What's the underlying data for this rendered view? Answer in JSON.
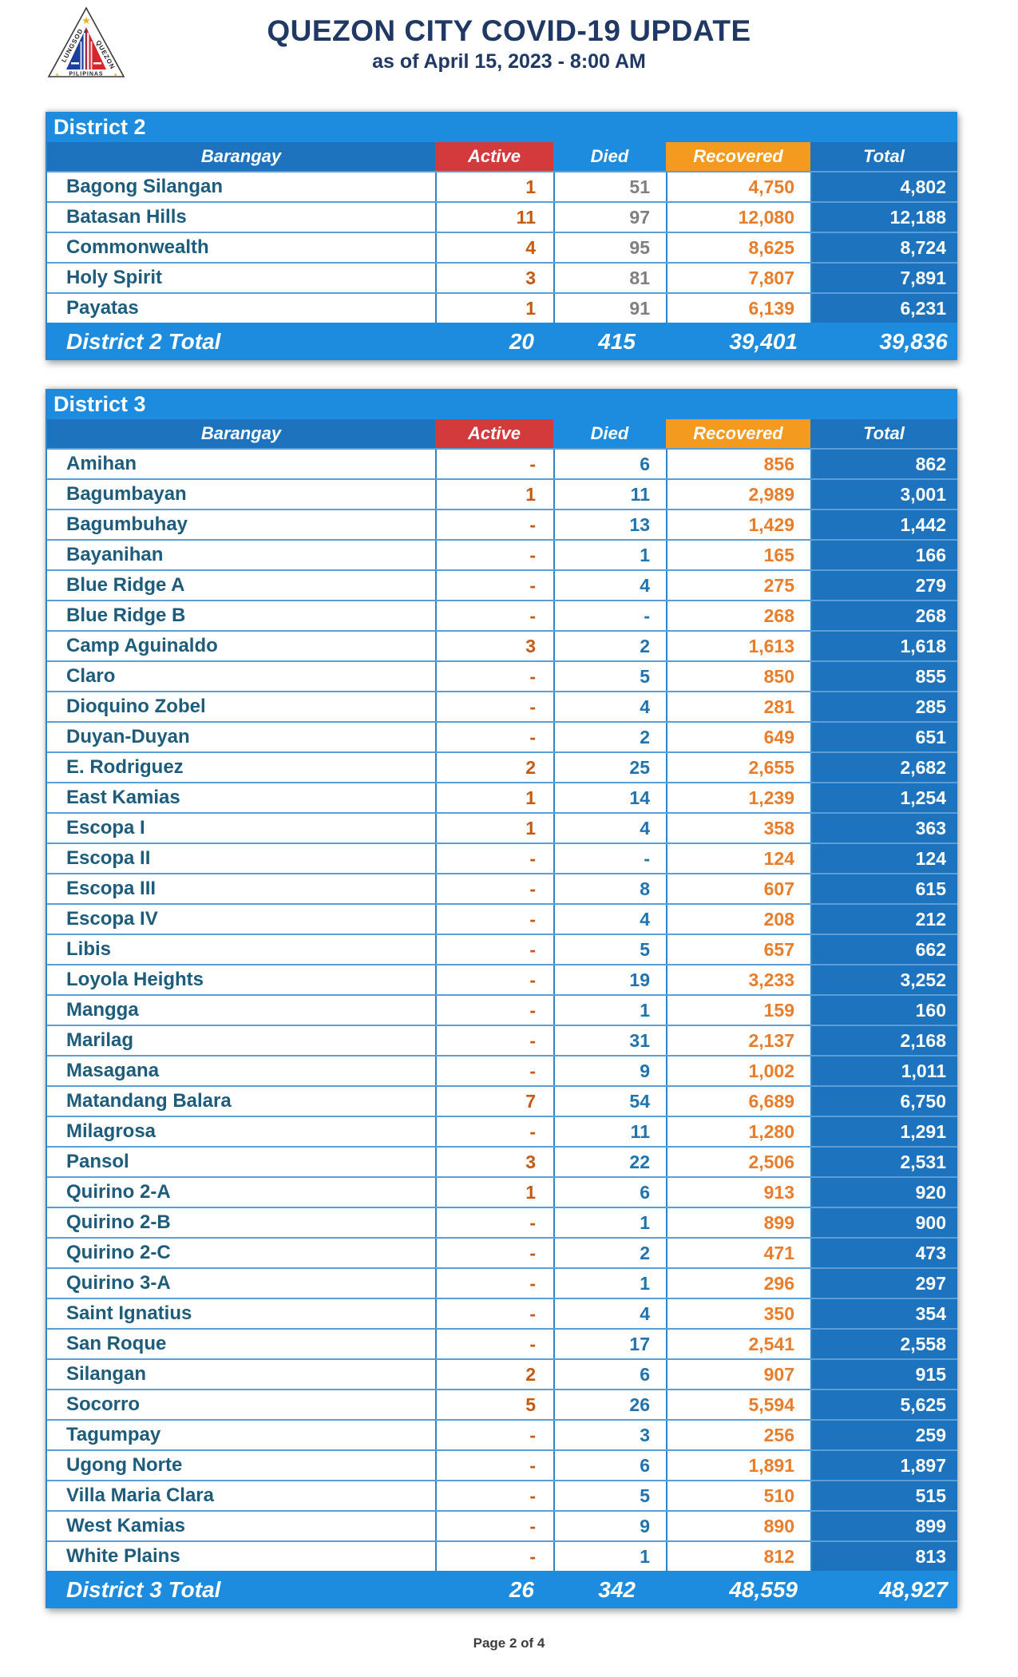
{
  "page": {
    "title": "QUEZON CITY COVID-19 UPDATE",
    "subtitle": "as of April 15, 2023 - 8:00 AM",
    "footer": "Page 2 of 4"
  },
  "logo": {
    "arc_left": "LUNGSOD",
    "arc_right": "QUEZON",
    "bottom": "PILIPINAS"
  },
  "columns": {
    "barangay": "Barangay",
    "active": "Active",
    "died": "Died",
    "recovered": "Recovered",
    "total": "Total"
  },
  "colors": {
    "title_text": "#1F3864",
    "district_band": "#1E8CDE",
    "header_blue": "#1E73BE",
    "active_header_red": "#D23A3C",
    "recovered_header_orange": "#F39A1F",
    "total_column_blue": "#1E73BE",
    "barangay_text": "#1E5C7C",
    "active_text": "#C55A11",
    "recovered_text": "#E87D2C",
    "died_text_district2": "#7F7F7F",
    "died_text_district3": "#2173AE",
    "grid_blue": "#2E86C8",
    "row_line_blue": "#5C9FD6"
  },
  "districts": [
    {
      "name": "District 2",
      "died_value_color": "#7F7F7F",
      "rows": [
        {
          "barangay": "Bagong Silangan",
          "active": "1",
          "died": "51",
          "recovered": "4,750",
          "total": "4,802"
        },
        {
          "barangay": "Batasan Hills",
          "active": "11",
          "died": "97",
          "recovered": "12,080",
          "total": "12,188"
        },
        {
          "barangay": "Commonwealth",
          "active": "4",
          "died": "95",
          "recovered": "8,625",
          "total": "8,724"
        },
        {
          "barangay": "Holy Spirit",
          "active": "3",
          "died": "81",
          "recovered": "7,807",
          "total": "7,891"
        },
        {
          "barangay": "Payatas",
          "active": "1",
          "died": "91",
          "recovered": "6,139",
          "total": "6,231"
        }
      ],
      "total_row": {
        "label": "District 2 Total",
        "active": "20",
        "died": "415",
        "recovered": "39,401",
        "total": "39,836"
      }
    },
    {
      "name": "District 3",
      "died_value_color": "#2173AE",
      "rows": [
        {
          "barangay": "Amihan",
          "active": "-",
          "died": "6",
          "recovered": "856",
          "total": "862"
        },
        {
          "barangay": "Bagumbayan",
          "active": "1",
          "died": "11",
          "recovered": "2,989",
          "total": "3,001"
        },
        {
          "barangay": "Bagumbuhay",
          "active": "-",
          "died": "13",
          "recovered": "1,429",
          "total": "1,442"
        },
        {
          "barangay": "Bayanihan",
          "active": "-",
          "died": "1",
          "recovered": "165",
          "total": "166"
        },
        {
          "barangay": "Blue Ridge A",
          "active": "-",
          "died": "4",
          "recovered": "275",
          "total": "279"
        },
        {
          "barangay": "Blue Ridge B",
          "active": "-",
          "died": "-",
          "recovered": "268",
          "total": "268"
        },
        {
          "barangay": "Camp Aguinaldo",
          "active": "3",
          "died": "2",
          "recovered": "1,613",
          "total": "1,618"
        },
        {
          "barangay": "Claro",
          "active": "-",
          "died": "5",
          "recovered": "850",
          "total": "855"
        },
        {
          "barangay": "Dioquino Zobel",
          "active": "-",
          "died": "4",
          "recovered": "281",
          "total": "285"
        },
        {
          "barangay": "Duyan-Duyan",
          "active": "-",
          "died": "2",
          "recovered": "649",
          "total": "651"
        },
        {
          "barangay": "E. Rodriguez",
          "active": "2",
          "died": "25",
          "recovered": "2,655",
          "total": "2,682"
        },
        {
          "barangay": "East Kamias",
          "active": "1",
          "died": "14",
          "recovered": "1,239",
          "total": "1,254"
        },
        {
          "barangay": "Escopa I",
          "active": "1",
          "died": "4",
          "recovered": "358",
          "total": "363"
        },
        {
          "barangay": "Escopa II",
          "active": "-",
          "died": "-",
          "recovered": "124",
          "total": "124"
        },
        {
          "barangay": "Escopa III",
          "active": "-",
          "died": "8",
          "recovered": "607",
          "total": "615"
        },
        {
          "barangay": "Escopa IV",
          "active": "-",
          "died": "4",
          "recovered": "208",
          "total": "212"
        },
        {
          "barangay": "Libis",
          "active": "-",
          "died": "5",
          "recovered": "657",
          "total": "662"
        },
        {
          "barangay": "Loyola Heights",
          "active": "-",
          "died": "19",
          "recovered": "3,233",
          "total": "3,252"
        },
        {
          "barangay": "Mangga",
          "active": "-",
          "died": "1",
          "recovered": "159",
          "total": "160"
        },
        {
          "barangay": "Marilag",
          "active": "-",
          "died": "31",
          "recovered": "2,137",
          "total": "2,168"
        },
        {
          "barangay": "Masagana",
          "active": "-",
          "died": "9",
          "recovered": "1,002",
          "total": "1,011"
        },
        {
          "barangay": "Matandang Balara",
          "active": "7",
          "died": "54",
          "recovered": "6,689",
          "total": "6,750"
        },
        {
          "barangay": "Milagrosa",
          "active": "-",
          "died": "11",
          "recovered": "1,280",
          "total": "1,291"
        },
        {
          "barangay": "Pansol",
          "active": "3",
          "died": "22",
          "recovered": "2,506",
          "total": "2,531"
        },
        {
          "barangay": "Quirino 2-A",
          "active": "1",
          "died": "6",
          "recovered": "913",
          "total": "920"
        },
        {
          "barangay": "Quirino 2-B",
          "active": "-",
          "died": "1",
          "recovered": "899",
          "total": "900"
        },
        {
          "barangay": "Quirino 2-C",
          "active": "-",
          "died": "2",
          "recovered": "471",
          "total": "473"
        },
        {
          "barangay": "Quirino 3-A",
          "active": "-",
          "died": "1",
          "recovered": "296",
          "total": "297"
        },
        {
          "barangay": "Saint Ignatius",
          "active": "-",
          "died": "4",
          "recovered": "350",
          "total": "354"
        },
        {
          "barangay": "San Roque",
          "active": "-",
          "died": "17",
          "recovered": "2,541",
          "total": "2,558"
        },
        {
          "barangay": "Silangan",
          "active": "2",
          "died": "6",
          "recovered": "907",
          "total": "915"
        },
        {
          "barangay": "Socorro",
          "active": "5",
          "died": "26",
          "recovered": "5,594",
          "total": "5,625"
        },
        {
          "barangay": "Tagumpay",
          "active": "-",
          "died": "3",
          "recovered": "256",
          "total": "259"
        },
        {
          "barangay": "Ugong Norte",
          "active": "-",
          "died": "6",
          "recovered": "1,891",
          "total": "1,897"
        },
        {
          "barangay": "Villa Maria Clara",
          "active": "-",
          "died": "5",
          "recovered": "510",
          "total": "515"
        },
        {
          "barangay": "West Kamias",
          "active": "-",
          "died": "9",
          "recovered": "890",
          "total": "899"
        },
        {
          "barangay": "White Plains",
          "active": "-",
          "died": "1",
          "recovered": "812",
          "total": "813"
        }
      ],
      "total_row": {
        "label": "District 3 Total",
        "active": "26",
        "died": "342",
        "recovered": "48,559",
        "total": "48,927"
      }
    }
  ]
}
